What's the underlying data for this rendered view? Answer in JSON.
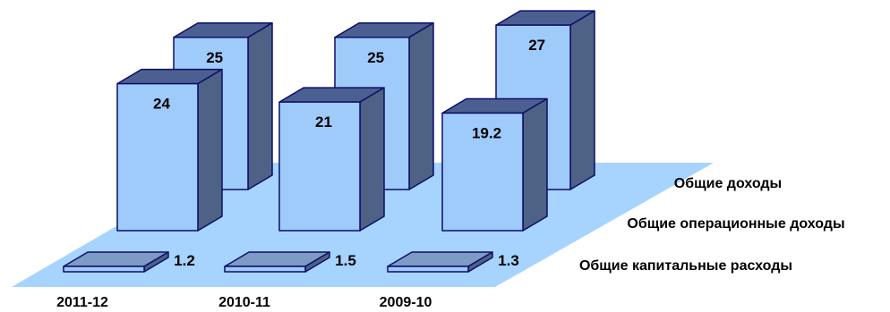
{
  "chart_data": {
    "type": "bar",
    "categories": [
      "2011-12",
      "2010-11",
      "2009-10"
    ],
    "series": [
      {
        "name": "Общие доходы",
        "values": [
          25,
          25,
          27
        ]
      },
      {
        "name": "Общие операционные доходы",
        "values": [
          24,
          21,
          19.2
        ]
      },
      {
        "name": "Общие капитальные расходы",
        "values": [
          1.2,
          1.5,
          1.3
        ]
      }
    ],
    "data_labels": {
      "back": [
        "25",
        "25",
        "27"
      ],
      "middle": [
        "24",
        "21",
        "19.2"
      ],
      "front": [
        "1.2",
        "1.5",
        "1.3"
      ]
    },
    "title": "",
    "xlabel": "",
    "ylabel": "",
    "legend_placement": "right (series names listed beside the depth rows)",
    "grid": false,
    "style": "3d-column",
    "colors": {
      "front_face": "#9FCBFB",
      "side_face": "#4D6284",
      "top_face": "#4B6090",
      "outline": "#0D0D6B",
      "floor": "#A6D4FF",
      "slab_top": "#7D9BC4"
    }
  }
}
